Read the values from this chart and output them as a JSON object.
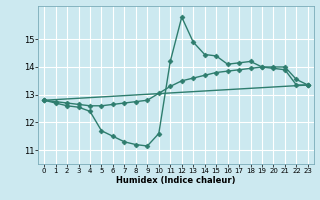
{
  "title": "",
  "xlabel": "Humidex (Indice chaleur)",
  "ylabel": "",
  "bg_color": "#cce9f0",
  "grid_color": "#ffffff",
  "line_color": "#2e7d6e",
  "marker": "D",
  "markersize": 2.5,
  "linewidth": 1.0,
  "xlim": [
    -0.5,
    23.5
  ],
  "ylim": [
    10.5,
    16.2
  ],
  "xticks": [
    0,
    1,
    2,
    3,
    4,
    5,
    6,
    7,
    8,
    9,
    10,
    11,
    12,
    13,
    14,
    15,
    16,
    17,
    18,
    19,
    20,
    21,
    22,
    23
  ],
  "yticks": [
    11,
    12,
    13,
    14,
    15
  ],
  "series": [
    {
      "x": [
        0,
        1,
        2,
        3,
        4,
        5,
        6,
        7,
        8,
        9,
        10,
        11,
        12,
        13,
        14,
        15,
        16,
        17,
        18,
        19,
        20,
        21,
        22,
        23
      ],
      "y": [
        12.8,
        12.7,
        12.6,
        12.55,
        12.4,
        11.7,
        11.5,
        11.3,
        11.2,
        11.15,
        11.6,
        14.2,
        15.8,
        14.9,
        14.45,
        14.4,
        14.1,
        14.15,
        14.2,
        14.0,
        13.95,
        13.9,
        13.35,
        13.35
      ]
    },
    {
      "x": [
        0,
        1,
        2,
        3,
        4,
        5,
        6,
        7,
        8,
        9,
        10,
        11,
        12,
        13,
        14,
        15,
        16,
        17,
        18,
        19,
        20,
        21,
        22,
        23
      ],
      "y": [
        12.8,
        12.75,
        12.7,
        12.65,
        12.6,
        12.6,
        12.65,
        12.7,
        12.75,
        12.8,
        13.05,
        13.3,
        13.5,
        13.6,
        13.7,
        13.8,
        13.85,
        13.9,
        13.95,
        14.0,
        14.0,
        14.0,
        13.55,
        13.35
      ]
    },
    {
      "x": [
        0,
        23
      ],
      "y": [
        12.8,
        13.35
      ]
    }
  ]
}
